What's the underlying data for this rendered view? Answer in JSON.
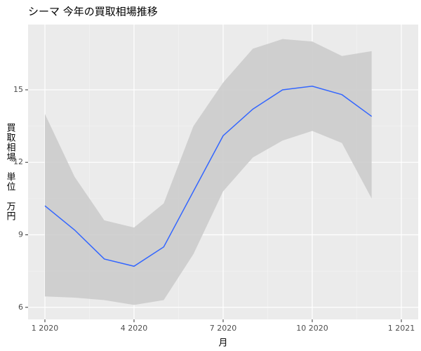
{
  "chart_data": {
    "type": "line",
    "title": "シーマ 今年の買取相場推移",
    "x_label": "月",
    "y_label": "買取相場　単位　万円",
    "x": [
      "2020-01",
      "2020-02",
      "2020-03",
      "2020-04",
      "2020-05",
      "2020-06",
      "2020-07",
      "2020-08",
      "2020-09",
      "2020-10",
      "2020-11",
      "2020-12"
    ],
    "values": [
      10.2,
      9.2,
      8.0,
      7.7,
      8.5,
      10.8,
      13.1,
      14.2,
      15.0,
      15.15,
      14.8,
      13.9
    ],
    "lower": [
      6.45,
      6.4,
      6.3,
      6.1,
      6.3,
      8.2,
      10.8,
      12.2,
      12.9,
      13.3,
      12.8,
      10.5
    ],
    "upper": [
      14.0,
      11.4,
      9.6,
      9.3,
      10.3,
      13.5,
      15.3,
      16.7,
      17.1,
      17.0,
      16.4,
      16.6
    ],
    "color": "#3366ff",
    "band_color": "#cccccc",
    "xlim": [
      "2020-01",
      "2021-01"
    ],
    "xticks": [
      {
        "value": "2020-01",
        "label": "1 2020"
      },
      {
        "value": "2020-04",
        "label": "4 2020"
      },
      {
        "value": "2020-07",
        "label": "7 2020"
      },
      {
        "value": "2020-10",
        "label": "10 2020"
      },
      {
        "value": "2021-01",
        "label": "1 2021"
      }
    ],
    "ylim": [
      5.5,
      17.7
    ],
    "yticks": [
      6,
      9,
      12,
      15
    ],
    "grid": true
  }
}
